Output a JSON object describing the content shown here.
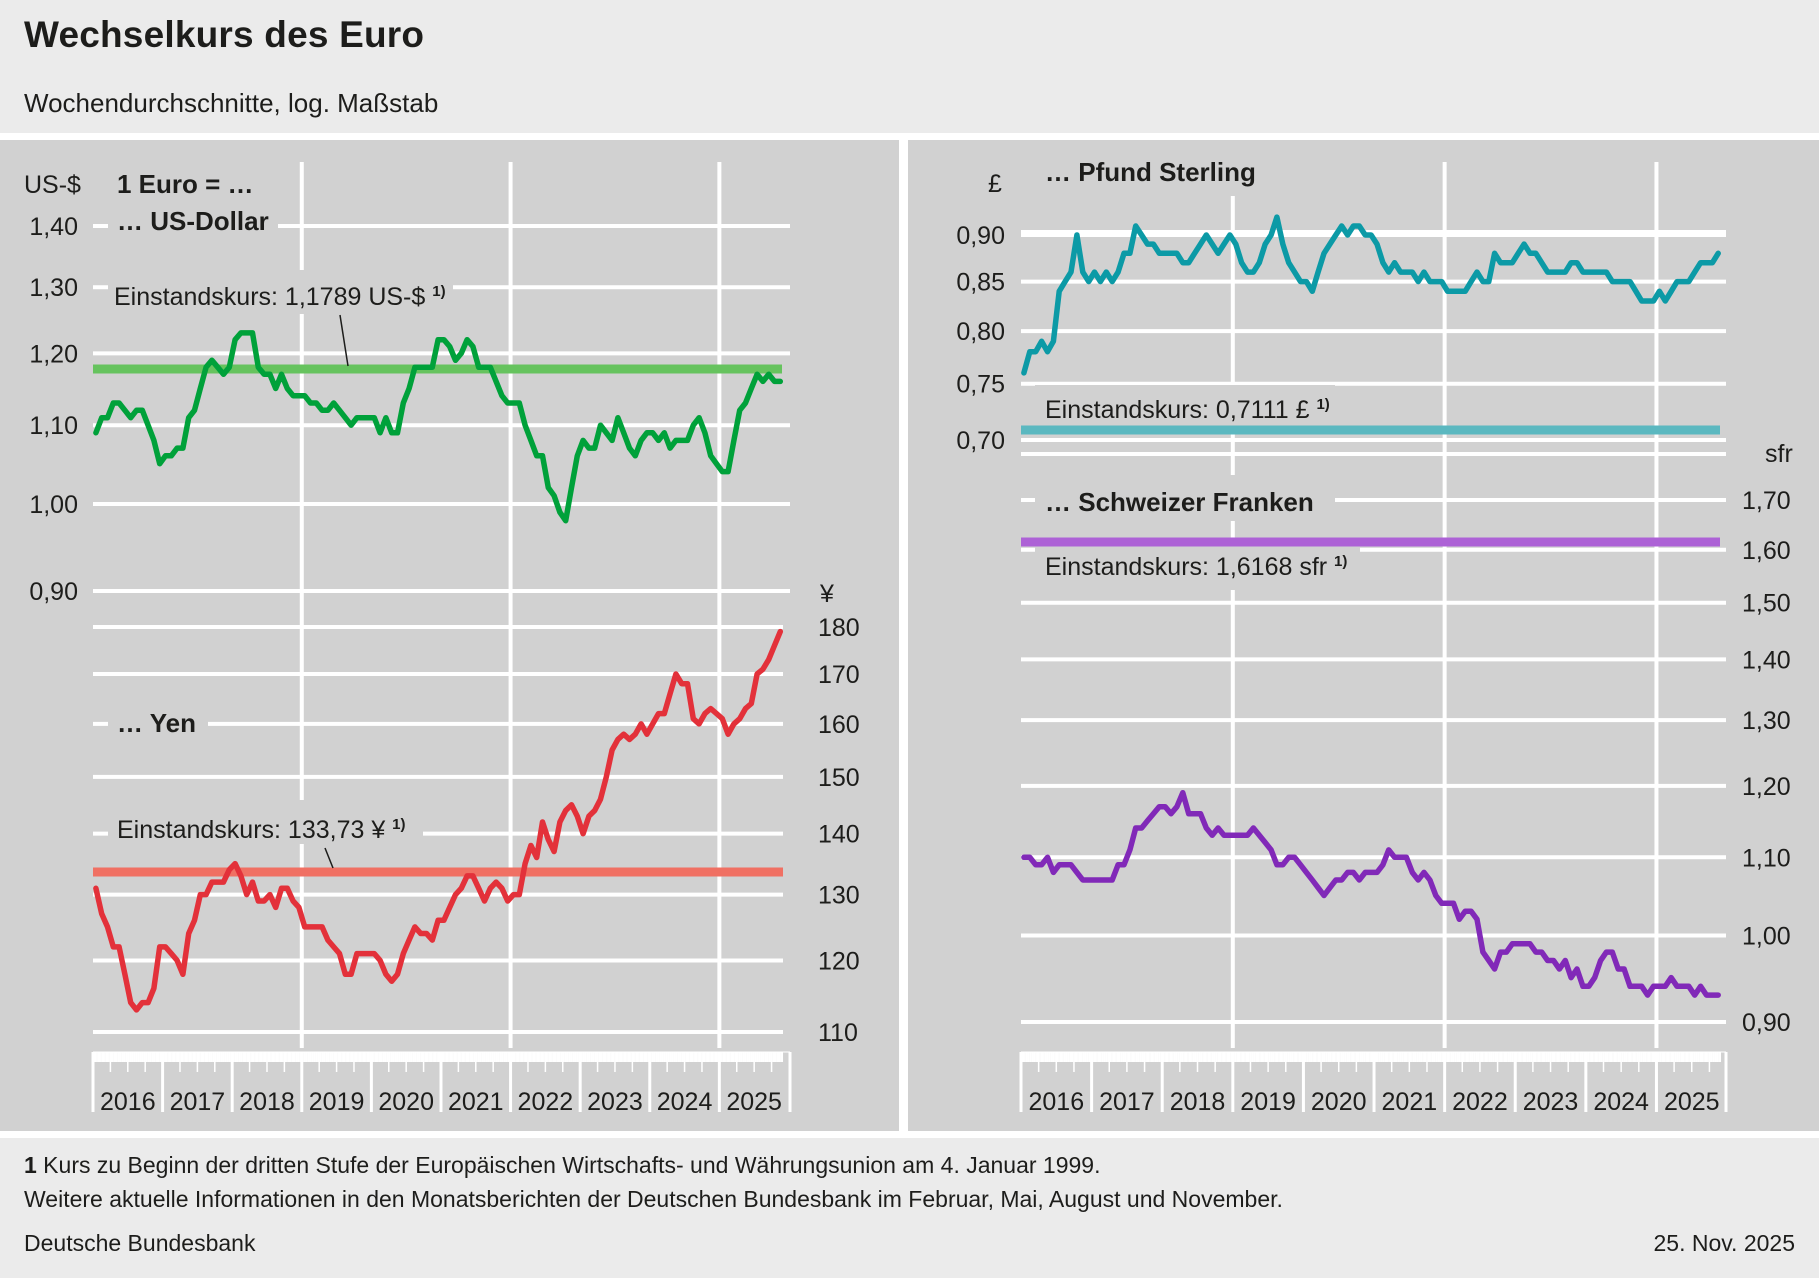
{
  "header": {
    "title": "Wechselkurs des Euro",
    "subtitle": "Wochendurchschnitte, log. Maßstab"
  },
  "footer": {
    "note_number": "1",
    "note_text": " Kurs zu Beginn der dritten Stufe der Europäischen Wirtschafts- und Währungsunion am 4. Januar 1999.",
    "more_info": "Weitere aktuelle Informationen in den Monatsberichten der Deutschen Bundesbank im Februar, Mai, August und November.",
    "source": "Deutsche Bundesbank",
    "date": "25. Nov. 2025"
  },
  "colors": {
    "usd": "#00a13a",
    "usd_ref": "#66c35e",
    "jpy": "#e3313a",
    "jpy_ref": "#f07063",
    "gbp": "#0c9aa6",
    "gbp_ref": "#5bb8c0",
    "chf": "#8129b8",
    "chf_ref": "#ad62d6",
    "panel_bg": "#d1d1d1",
    "grid": "#ffffff"
  },
  "chart_data": [
    {
      "type": "line",
      "title": "… US-Dollar",
      "header_label": "1 Euro = …",
      "ylabel": "US-$",
      "scale": "log",
      "ylim": [
        0.9,
        1.4
      ],
      "yticks": [
        1.4,
        1.3,
        1.2,
        1.1,
        1.0,
        0.9
      ],
      "ytick_labels": [
        "1,40",
        "1,30",
        "1,20",
        "1,10",
        "1,00",
        "0,90"
      ],
      "x_start": 2016.0,
      "x_end": 2025.9,
      "xtick_labels": [
        "2016",
        "2017",
        "2018",
        "2019",
        "2020",
        "2021",
        "2022",
        "2023",
        "2024",
        "2025"
      ],
      "reference": {
        "value": 1.1789,
        "label": "Einstandskurs: 1,1789 US-$",
        "footnote": "1)"
      },
      "values": [
        1.09,
        1.11,
        1.11,
        1.13,
        1.13,
        1.12,
        1.11,
        1.12,
        1.12,
        1.1,
        1.08,
        1.05,
        1.06,
        1.06,
        1.07,
        1.07,
        1.11,
        1.12,
        1.15,
        1.18,
        1.19,
        1.18,
        1.17,
        1.18,
        1.22,
        1.23,
        1.23,
        1.23,
        1.18,
        1.17,
        1.17,
        1.15,
        1.17,
        1.15,
        1.14,
        1.14,
        1.14,
        1.13,
        1.13,
        1.12,
        1.12,
        1.13,
        1.12,
        1.11,
        1.1,
        1.11,
        1.11,
        1.11,
        1.11,
        1.09,
        1.11,
        1.09,
        1.09,
        1.13,
        1.15,
        1.18,
        1.18,
        1.18,
        1.18,
        1.22,
        1.22,
        1.21,
        1.19,
        1.2,
        1.22,
        1.21,
        1.18,
        1.18,
        1.18,
        1.16,
        1.14,
        1.13,
        1.13,
        1.13,
        1.1,
        1.08,
        1.06,
        1.06,
        1.02,
        1.01,
        0.99,
        0.98,
        1.02,
        1.06,
        1.08,
        1.07,
        1.07,
        1.1,
        1.09,
        1.08,
        1.11,
        1.09,
        1.07,
        1.06,
        1.08,
        1.09,
        1.09,
        1.08,
        1.09,
        1.07,
        1.08,
        1.08,
        1.08,
        1.1,
        1.11,
        1.09,
        1.06,
        1.05,
        1.04,
        1.04,
        1.08,
        1.12,
        1.13,
        1.15,
        1.17,
        1.16,
        1.17,
        1.16,
        1.16
      ]
    },
    {
      "type": "line",
      "title": "… Yen",
      "ylabel": "¥",
      "scale": "log",
      "ylim": [
        110,
        180
      ],
      "yticks": [
        180,
        170,
        160,
        150,
        140,
        130,
        120,
        110
      ],
      "ytick_labels": [
        "180",
        "170",
        "160",
        "150",
        "140",
        "130",
        "120",
        "110"
      ],
      "x_start": 2016.0,
      "x_end": 2025.9,
      "reference": {
        "value": 133.73,
        "label": "Einstandskurs: 133,73 ¥",
        "footnote": "1)"
      },
      "values": [
        131,
        127,
        125,
        122,
        122,
        118,
        114,
        113,
        114,
        114,
        116,
        122,
        122,
        121,
        120,
        118,
        124,
        126,
        130,
        130,
        132,
        132,
        132,
        134,
        135,
        133,
        130,
        132,
        129,
        129,
        130,
        128,
        131,
        131,
        129,
        128,
        125,
        125,
        125,
        125,
        123,
        122,
        121,
        118,
        118,
        121,
        121,
        121,
        121,
        120,
        118,
        117,
        118,
        121,
        123,
        125,
        124,
        124,
        123,
        126,
        126,
        128,
        130,
        131,
        133,
        133,
        131,
        129,
        131,
        132,
        131,
        129,
        130,
        130,
        135,
        138,
        136,
        142,
        139,
        137,
        142,
        144,
        145,
        143,
        140,
        143,
        144,
        146,
        150,
        155,
        157,
        158,
        157,
        158,
        160,
        158,
        160,
        162,
        162,
        166,
        170,
        168,
        168,
        161,
        160,
        162,
        163,
        162,
        161,
        158,
        160,
        161,
        163,
        164,
        170,
        171,
        173,
        176,
        179
      ]
    },
    {
      "type": "line",
      "title": "… Pfund Sterling",
      "ylabel": "£",
      "scale": "log",
      "ylim": [
        0.7,
        0.9
      ],
      "yticks": [
        0.9,
        0.85,
        0.8,
        0.75,
        0.7
      ],
      "ytick_labels": [
        "0,90",
        "0,85",
        "0,80",
        "0,75",
        "0,70"
      ],
      "x_start": 2016.0,
      "x_end": 2025.9,
      "xtick_labels": [
        "2016",
        "2017",
        "2018",
        "2019",
        "2020",
        "2021",
        "2022",
        "2023",
        "2024",
        "2025"
      ],
      "reference": {
        "value": 0.7111,
        "label": "Einstandskurs: 0,7111 £",
        "footnote": "1)"
      },
      "values": [
        0.76,
        0.78,
        0.78,
        0.79,
        0.78,
        0.79,
        0.84,
        0.85,
        0.86,
        0.9,
        0.86,
        0.85,
        0.86,
        0.85,
        0.86,
        0.85,
        0.86,
        0.88,
        0.88,
        0.91,
        0.9,
        0.89,
        0.89,
        0.88,
        0.88,
        0.88,
        0.88,
        0.87,
        0.87,
        0.88,
        0.89,
        0.9,
        0.89,
        0.88,
        0.89,
        0.9,
        0.89,
        0.87,
        0.86,
        0.86,
        0.87,
        0.89,
        0.9,
        0.92,
        0.89,
        0.87,
        0.86,
        0.85,
        0.85,
        0.84,
        0.86,
        0.88,
        0.89,
        0.9,
        0.91,
        0.9,
        0.91,
        0.91,
        0.9,
        0.9,
        0.89,
        0.87,
        0.86,
        0.87,
        0.86,
        0.86,
        0.86,
        0.85,
        0.86,
        0.85,
        0.85,
        0.85,
        0.84,
        0.84,
        0.84,
        0.84,
        0.85,
        0.86,
        0.85,
        0.85,
        0.88,
        0.87,
        0.87,
        0.87,
        0.88,
        0.89,
        0.88,
        0.88,
        0.87,
        0.86,
        0.86,
        0.86,
        0.86,
        0.87,
        0.87,
        0.86,
        0.86,
        0.86,
        0.86,
        0.86,
        0.85,
        0.85,
        0.85,
        0.85,
        0.84,
        0.83,
        0.83,
        0.83,
        0.84,
        0.83,
        0.84,
        0.85,
        0.85,
        0.85,
        0.86,
        0.87,
        0.87,
        0.87,
        0.88
      ]
    },
    {
      "type": "line",
      "title": "… Schweizer Franken",
      "ylabel": "sfr",
      "scale": "log",
      "ylim": [
        0.9,
        1.7
      ],
      "yticks": [
        1.7,
        1.6,
        1.5,
        1.4,
        1.3,
        1.2,
        1.1,
        1.0,
        0.9
      ],
      "ytick_labels": [
        "1,70",
        "1,60",
        "1,50",
        "1,40",
        "1,30",
        "1,20",
        "1,10",
        "1,00",
        "0,90"
      ],
      "x_start": 2016.0,
      "x_end": 2025.9,
      "reference": {
        "value": 1.6168,
        "label": "Einstandskurs: 1,6168 sfr",
        "footnote": "1)"
      },
      "values": [
        1.1,
        1.1,
        1.09,
        1.09,
        1.1,
        1.08,
        1.09,
        1.09,
        1.09,
        1.08,
        1.07,
        1.07,
        1.07,
        1.07,
        1.07,
        1.07,
        1.09,
        1.09,
        1.11,
        1.14,
        1.14,
        1.15,
        1.16,
        1.17,
        1.17,
        1.16,
        1.17,
        1.19,
        1.16,
        1.16,
        1.16,
        1.14,
        1.13,
        1.14,
        1.13,
        1.13,
        1.13,
        1.13,
        1.13,
        1.14,
        1.13,
        1.12,
        1.11,
        1.09,
        1.09,
        1.1,
        1.1,
        1.09,
        1.08,
        1.07,
        1.06,
        1.05,
        1.06,
        1.07,
        1.07,
        1.08,
        1.08,
        1.07,
        1.08,
        1.08,
        1.08,
        1.09,
        1.11,
        1.1,
        1.1,
        1.1,
        1.08,
        1.07,
        1.08,
        1.07,
        1.05,
        1.04,
        1.04,
        1.04,
        1.02,
        1.03,
        1.03,
        1.02,
        0.98,
        0.97,
        0.96,
        0.98,
        0.98,
        0.99,
        0.99,
        0.99,
        0.99,
        0.98,
        0.98,
        0.97,
        0.97,
        0.96,
        0.97,
        0.95,
        0.96,
        0.94,
        0.94,
        0.95,
        0.97,
        0.98,
        0.98,
        0.96,
        0.96,
        0.94,
        0.94,
        0.94,
        0.93,
        0.94,
        0.94,
        0.94,
        0.95,
        0.94,
        0.94,
        0.94,
        0.93,
        0.94,
        0.93,
        0.93,
        0.93
      ]
    }
  ]
}
